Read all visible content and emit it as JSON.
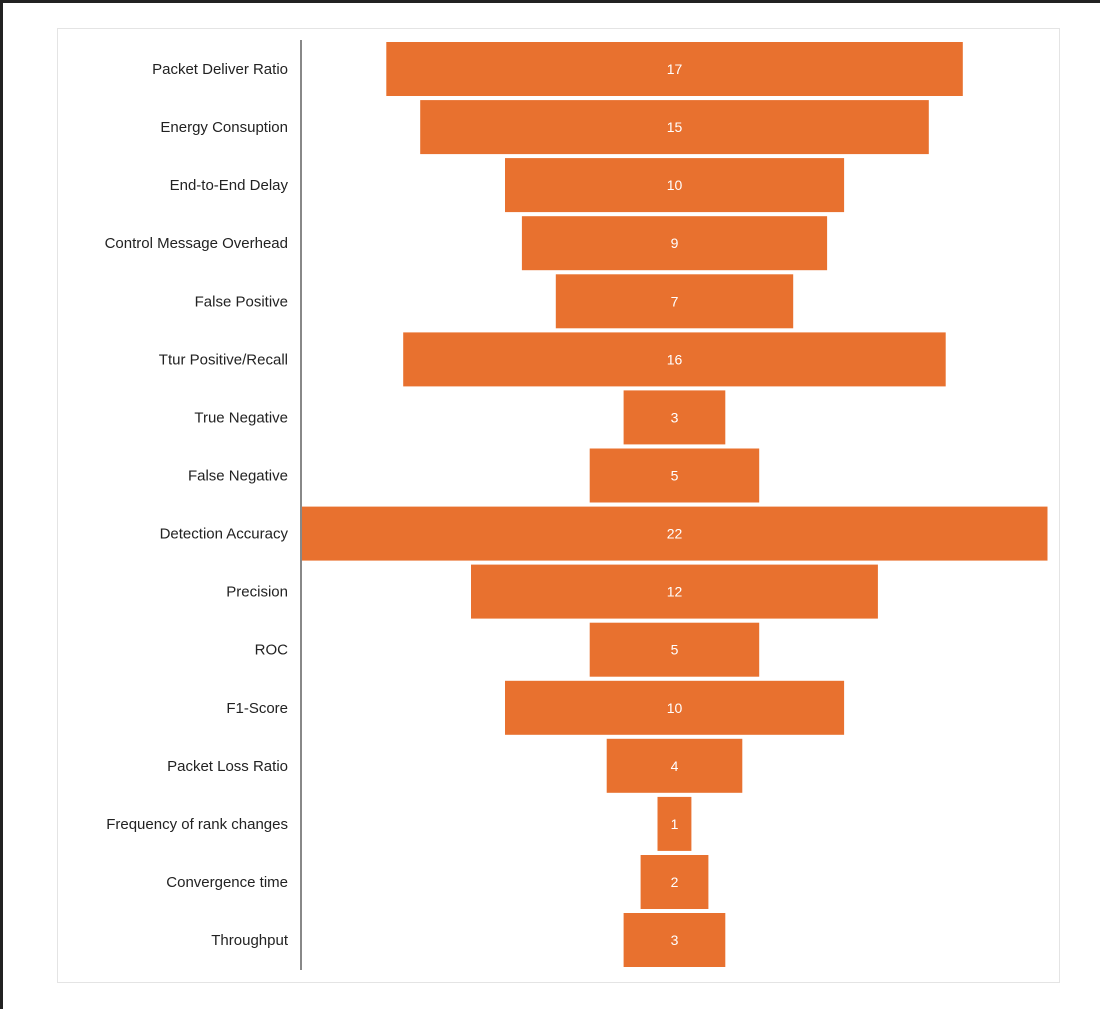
{
  "chart_data": {
    "type": "bar",
    "subtype": "funnel",
    "orientation": "horizontal",
    "categories": [
      "Packet Deliver Ratio",
      "Energy Consuption",
      "End-to-End Delay",
      "Control Message Overhead",
      "False Positive",
      "Ttur Positive/Recall",
      "True Negative",
      "False Negative",
      "Detection Accuracy",
      "Precision",
      "ROC",
      "F1-Score",
      "Packet Loss Ratio",
      "Frequency of rank changes",
      "Convergence time",
      "Throughput"
    ],
    "values": [
      17,
      15,
      10,
      9,
      7,
      16,
      3,
      5,
      22,
      12,
      5,
      10,
      4,
      1,
      2,
      3
    ],
    "data_labels": [
      "17",
      "15",
      "10",
      "9",
      "7",
      "16",
      "3",
      "5",
      "22",
      "12",
      "5",
      "10",
      "4",
      "1",
      "2",
      "3"
    ],
    "bar_color": "#e8712f",
    "label_color": "#ffffff",
    "axis_color": "#888888",
    "title": "",
    "xlabel": "",
    "ylabel": "",
    "legend": "none",
    "grid": false
  }
}
